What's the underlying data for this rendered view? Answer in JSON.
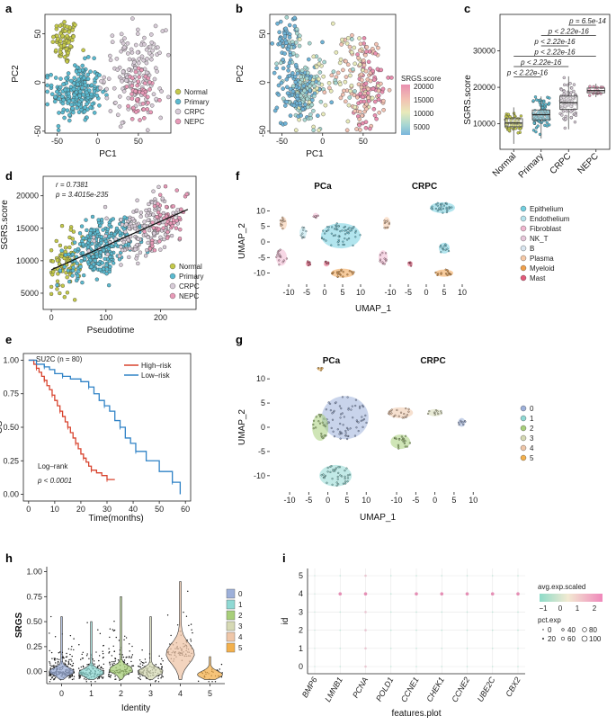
{
  "colors": {
    "Normal": "#c4c94a",
    "Primary": "#5bbad0",
    "CRPC": "#d8ccd8",
    "NEPC": "#e89ab8",
    "Epithelium": "#72cfe0",
    "Endothelium": "#b7e3ec",
    "Fibroblast": "#f1b6cf",
    "NK_T": "#e7c7da",
    "B": "#d9e6f0",
    "Plasma": "#f6c9a6",
    "Myeloid": "#f0a04a",
    "Mast": "#e35a7a",
    "cl0": "#9db0da",
    "cl1": "#8fd9d4",
    "cl2": "#a8cf7a",
    "cl3": "#d6d9b4",
    "cl4": "#efc6a8",
    "cl5": "#f3b04c",
    "high_risk": "#d8432e",
    "low_risk": "#2f82c6"
  },
  "panel_labels": [
    "a",
    "b",
    "c",
    "d",
    "e",
    "f",
    "g",
    "h",
    "i"
  ],
  "chart_data": [
    {
      "id": "a",
      "type": "scatter",
      "xlabel": "PC1",
      "ylabel": "PC2",
      "xticks": [
        -50,
        0,
        50
      ],
      "yticks": [
        50,
        0,
        -50
      ],
      "xlim": [
        -65,
        90
      ],
      "ylim": [
        -52,
        70
      ],
      "legend": [
        "Normal",
        "Primary",
        "CRPC",
        "NEPC"
      ],
      "clusters": [
        {
          "group": "Normal",
          "cx": -40,
          "cy": 42,
          "sx": 8,
          "sy": 12,
          "n": 70
        },
        {
          "group": "Primary",
          "cx": -25,
          "cy": -10,
          "sx": 15,
          "sy": 15,
          "n": 230
        },
        {
          "group": "CRPC",
          "cx": 45,
          "cy": 10,
          "sx": 18,
          "sy": 22,
          "n": 150
        },
        {
          "group": "NEPC",
          "cx": 55,
          "cy": -15,
          "sx": 12,
          "sy": 14,
          "n": 50
        }
      ]
    },
    {
      "id": "b",
      "type": "scatter",
      "xlabel": "PC1",
      "ylabel": "PC2",
      "xticks": [
        -50,
        0,
        50
      ],
      "yticks": [
        50,
        0,
        -50
      ],
      "xlim": [
        -65,
        90
      ],
      "ylim": [
        -52,
        70
      ],
      "legend_title": "SRGS.score",
      "legend_ticks": [
        "20000",
        "15000",
        "10000",
        "5000"
      ]
    },
    {
      "id": "c",
      "type": "box",
      "ylabel": "SGRS.score",
      "categories": [
        "Normal",
        "Primary",
        "CRPC",
        "NEPC"
      ],
      "yticks": [
        10000,
        20000,
        30000
      ],
      "ylim": [
        3000,
        40000
      ],
      "medians": [
        10200,
        12500,
        15800,
        19100
      ],
      "q1": [
        9200,
        11100,
        14000,
        18500
      ],
      "q3": [
        11400,
        13800,
        17600,
        19800
      ],
      "wlo": [
        4500,
        6000,
        8500,
        17300
      ],
      "whi": [
        14500,
        17500,
        23000,
        21000
      ],
      "comparisons": [
        {
          "text": "p = 6.5e-14",
          "from": 2,
          "to": 3
        },
        {
          "text": "p < 2.22e-16",
          "from": 1,
          "to": 3
        },
        {
          "text": "p < 2.22e-16",
          "from": 1,
          "to": 2
        },
        {
          "text": "p < 2.22e-16",
          "from": 0,
          "to": 3
        },
        {
          "text": "p < 2.22e-16",
          "from": 0,
          "to": 2
        },
        {
          "text": "p < 2.22e-16",
          "from": 0,
          "to": 1
        }
      ]
    },
    {
      "id": "d",
      "type": "scatter",
      "xlabel": "Pseudotime",
      "ylabel": "SGRS.score",
      "xticks": [
        0,
        100,
        200
      ],
      "yticks": [
        20000,
        15000,
        10000,
        5000
      ],
      "xlim": [
        -15,
        265
      ],
      "ylim": [
        2500,
        23000
      ],
      "r_text": "r = 0.7381",
      "p_text": "p = 3.4015e-235",
      "trend": {
        "x": [
          0,
          250
        ],
        "y": [
          8600,
          17900
        ]
      },
      "legend": [
        "Normal",
        "Primary",
        "CRPC",
        "NEPC"
      ]
    },
    {
      "id": "e",
      "type": "line",
      "subtitle": "SU2C (n = 80)",
      "xlabel": "Time(months)",
      "ylabel": "OS",
      "xticks": [
        0,
        10,
        20,
        30,
        40,
        50,
        60
      ],
      "yticks": [
        "1.00",
        "0.75",
        "0.50",
        "0.25",
        "0.00"
      ],
      "xlim": [
        -2,
        62
      ],
      "ylim": [
        -0.05,
        1.05
      ],
      "legend": [
        "High–risk",
        "Low–risk"
      ],
      "annotation_1": "Log–rank",
      "annotation_2": "p < 0.0001",
      "series": [
        {
          "name": "High-risk",
          "x": [
            0,
            2,
            3,
            4,
            5,
            6,
            7,
            8,
            9,
            10,
            11,
            12,
            13,
            14,
            15,
            16,
            17,
            18,
            19,
            20,
            21,
            22,
            23,
            24,
            26,
            28,
            30,
            33
          ],
          "y": [
            1.0,
            0.97,
            0.94,
            0.91,
            0.88,
            0.85,
            0.81,
            0.78,
            0.74,
            0.7,
            0.66,
            0.62,
            0.58,
            0.54,
            0.5,
            0.46,
            0.42,
            0.38,
            0.34,
            0.3,
            0.27,
            0.24,
            0.21,
            0.18,
            0.16,
            0.14,
            0.11,
            0.11
          ]
        },
        {
          "name": "Low-risk",
          "x": [
            0,
            3,
            6,
            8,
            10,
            13,
            16,
            20,
            23,
            25,
            27,
            29,
            31,
            33,
            35,
            37,
            39,
            41,
            45,
            50,
            55,
            58
          ],
          "y": [
            1.0,
            0.97,
            0.95,
            0.93,
            0.9,
            0.88,
            0.86,
            0.84,
            0.8,
            0.75,
            0.7,
            0.66,
            0.62,
            0.55,
            0.5,
            0.42,
            0.38,
            0.32,
            0.25,
            0.17,
            0.09,
            0.0
          ]
        }
      ]
    },
    {
      "id": "f",
      "type": "scatter",
      "facets": [
        "PCa",
        "CRPC"
      ],
      "xlabel": "UMAP_1",
      "ylabel": "UMAP_2",
      "xticks": [
        -10,
        -5,
        0,
        5,
        10
      ],
      "yticks": [
        10,
        5,
        0,
        -5,
        -10
      ],
      "legend": [
        "Epithelium",
        "Endothelium",
        "Fibroblast",
        "NK_T",
        "B",
        "Plasma",
        "Myeloid",
        "Mast"
      ]
    },
    {
      "id": "g",
      "type": "scatter",
      "facets": [
        "PCa",
        "CRPC"
      ],
      "xlabel": "UMAP_1",
      "ylabel": "UMAP_2",
      "xticks": [
        -10,
        -5,
        0,
        5,
        10
      ],
      "yticks": [
        10,
        5,
        0,
        -5,
        -10
      ],
      "legend": [
        "0",
        "1",
        "2",
        "3",
        "4",
        "5"
      ]
    },
    {
      "id": "h",
      "type": "violin",
      "xlabel": "Identity",
      "ylabel": "SRGS",
      "categories": [
        "0",
        "1",
        "2",
        "3",
        "4",
        "5"
      ],
      "yticks": [
        "1.00",
        "0.75",
        "0.50",
        "0.25",
        "0.00"
      ],
      "ylim": [
        -0.12,
        1.05
      ],
      "legend": [
        "0",
        "1",
        "2",
        "3",
        "4",
        "5"
      ]
    },
    {
      "id": "i",
      "type": "dot",
      "xlabel": "features.plot",
      "ylabel": "id",
      "features": [
        "BMP6",
        "LMNB1",
        "PCNA",
        "POLD1",
        "CCNE1",
        "CHEK1",
        "CCNE2",
        "UBE2C",
        "CBX2"
      ],
      "highlight_feature": "PCNA",
      "yticks": [
        "5",
        "4",
        "3",
        "2",
        "1",
        "0"
      ],
      "legend_title_1": "avg.exp.scaled",
      "color_ticks": [
        "−1",
        "0",
        "1",
        "2"
      ],
      "legend_title_2": "pct.exp",
      "size_labels": [
        "0",
        "20",
        "40",
        "60",
        "80",
        "100"
      ]
    }
  ]
}
